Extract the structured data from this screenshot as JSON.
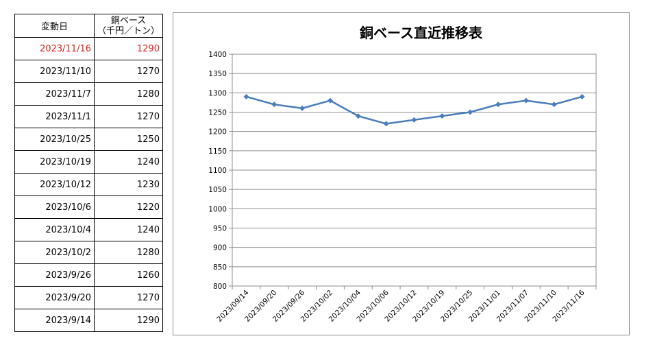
{
  "table": {
    "header_date": "変動日",
    "header_price_line1": "銅ベース",
    "header_price_line2": "（千円／トン）",
    "rows": [
      {
        "date": "2023/11/16",
        "price": "1290"
      },
      {
        "date": "2023/11/10",
        "price": "1270"
      },
      {
        "date": "2023/11/7",
        "price": "1280"
      },
      {
        "date": "2023/11/1",
        "price": "1270"
      },
      {
        "date": "2023/10/25",
        "price": "1250"
      },
      {
        "date": "2023/10/19",
        "price": "1240"
      },
      {
        "date": "2023/10/12",
        "price": "1230"
      },
      {
        "date": "2023/10/6",
        "price": "1220"
      },
      {
        "date": "2023/10/4",
        "price": "1240"
      },
      {
        "date": "2023/10/2",
        "price": "1280"
      },
      {
        "date": "2023/9/26",
        "price": "1260"
      },
      {
        "date": "2023/9/20",
        "price": "1270"
      },
      {
        "date": "2023/9/14",
        "price": "1290"
      }
    ],
    "highlight_color": "#e0201a"
  },
  "chart_data": {
    "type": "line",
    "title": "銅ベース直近推移表",
    "categories": [
      "2023/09/14",
      "2023/09/20",
      "2023/09/26",
      "2023/10/02",
      "2023/10/04",
      "2023/10/06",
      "2023/10/12",
      "2023/10/19",
      "2023/10/25",
      "2023/11/01",
      "2023/11/07",
      "2023/11/10",
      "2023/11/16"
    ],
    "series": [
      {
        "values": [
          1290,
          1270,
          1260,
          1280,
          1240,
          1220,
          1230,
          1240,
          1250,
          1270,
          1280,
          1270,
          1290
        ],
        "color": "#4a7ebb"
      }
    ],
    "ylim": [
      800,
      1400
    ],
    "yticks": [
      "800",
      "850",
      "900",
      "950",
      "1000",
      "1050",
      "1100",
      "1150",
      "1200",
      "1250",
      "1300",
      "1350",
      "1400"
    ],
    "grid": true,
    "legend": "none",
    "xlabel": "",
    "ylabel": ""
  }
}
